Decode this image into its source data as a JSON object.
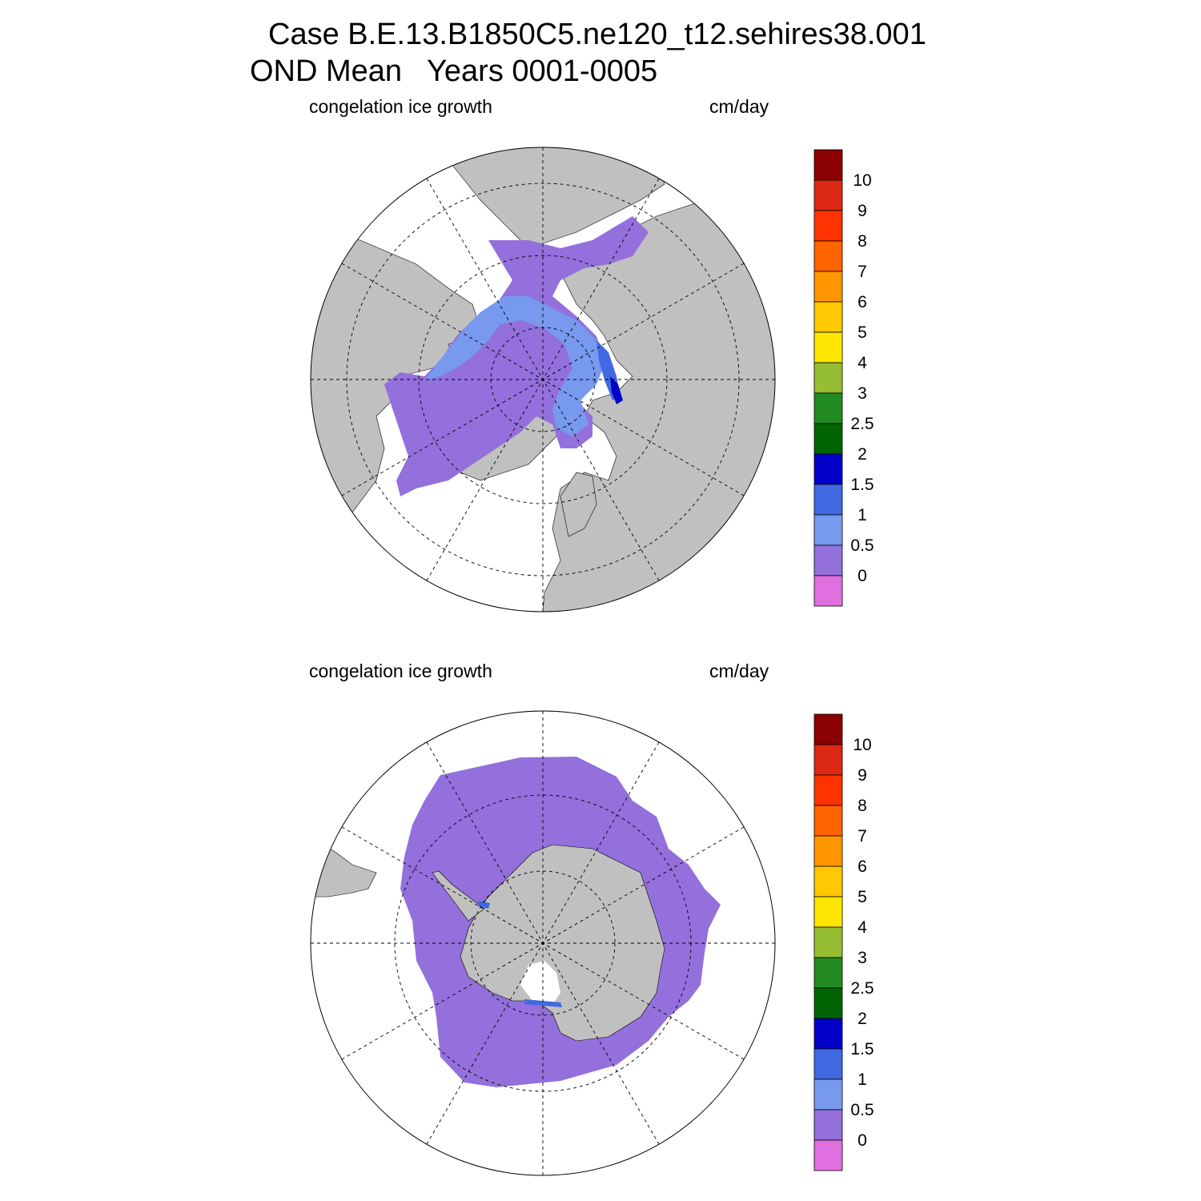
{
  "title": {
    "line1": "Case B.E.13.B1850C5.ne120_t12.sehires38.001",
    "line2": "OND Mean   Years 0001-0005"
  },
  "panels": [
    {
      "name": "arctic",
      "left_label": "congelation ice growth",
      "right_label": "cm/day"
    },
    {
      "name": "antarctic",
      "left_label": "congelation ice growth",
      "right_label": "cm/day"
    }
  ],
  "colorbar": {
    "levels": [
      "10",
      "9",
      "8",
      "7",
      "6",
      "5",
      "4",
      "3",
      "2.5",
      "2",
      "1.5",
      "1",
      "0.5",
      "0"
    ],
    "colors": [
      "#8b0000",
      "#dc2814",
      "#ff3200",
      "#ff6400",
      "#ff9600",
      "#ffc800",
      "#ffe600",
      "#96be32",
      "#228b22",
      "#006400",
      "#0000c8",
      "#4169e1",
      "#7799ee",
      "#9370db",
      "#e070e0"
    ]
  },
  "map_colors": {
    "land": "#c0c0c0",
    "ice_low": "#9370db",
    "ice_mid": "#7799ee",
    "ice_high": "#4169e1",
    "ice_max": "#0000c8"
  }
}
